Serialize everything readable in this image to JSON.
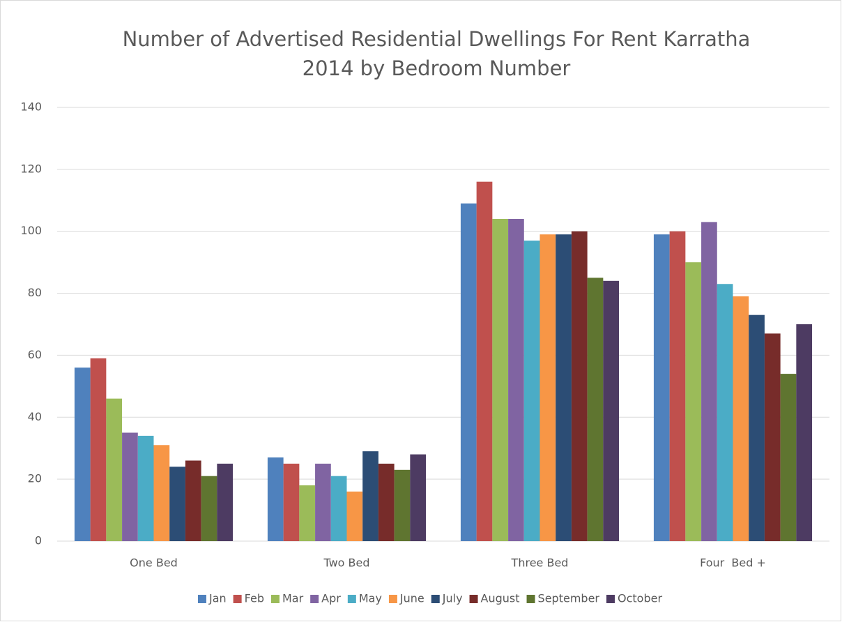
{
  "chart_data": {
    "type": "bar",
    "title": [
      "Number of Advertised Residential Dwellings For Rent Karratha",
      "2014 by Bedroom Number"
    ],
    "categories": [
      "One Bed",
      "Two Bed",
      "Three Bed",
      "Four  Bed +"
    ],
    "series": [
      {
        "name": "Jan",
        "color": "#4f81bd",
        "values": [
          56,
          27,
          109,
          99
        ]
      },
      {
        "name": "Feb",
        "color": "#c0504d",
        "values": [
          59,
          25,
          116,
          100
        ]
      },
      {
        "name": "Mar",
        "color": "#9bbb59",
        "values": [
          46,
          18,
          104,
          90
        ]
      },
      {
        "name": "Apr",
        "color": "#8064a2",
        "values": [
          35,
          25,
          104,
          103
        ]
      },
      {
        "name": "May",
        "color": "#4bacc6",
        "values": [
          34,
          21,
          97,
          83
        ]
      },
      {
        "name": "June",
        "color": "#f79646",
        "values": [
          31,
          16,
          99,
          79
        ]
      },
      {
        "name": "July",
        "color": "#2c4d75",
        "values": [
          24,
          29,
          99,
          73
        ]
      },
      {
        "name": "August",
        "color": "#772c2a",
        "values": [
          26,
          25,
          100,
          67
        ]
      },
      {
        "name": "September",
        "color": "#5f7530",
        "values": [
          21,
          23,
          85,
          54
        ]
      },
      {
        "name": "October",
        "color": "#4d3b62",
        "values": [
          25,
          28,
          84,
          70
        ]
      }
    ],
    "ylim": [
      0,
      140
    ],
    "yticks": [
      0,
      20,
      40,
      60,
      80,
      100,
      120,
      140
    ],
    "grid": true,
    "legend": "bottom"
  }
}
